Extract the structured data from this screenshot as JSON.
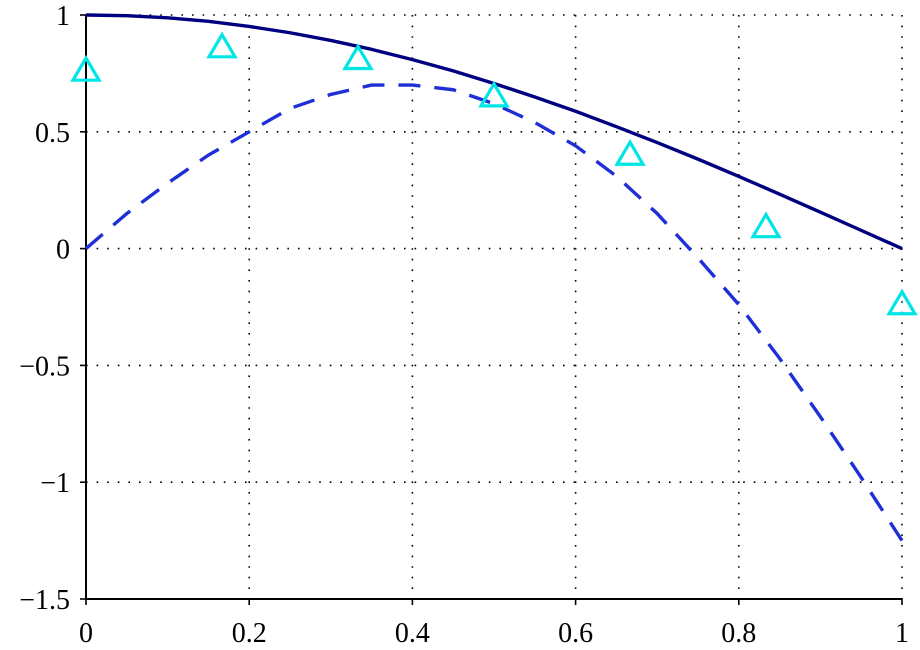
{
  "chart_data": {
    "type": "line",
    "title": "",
    "xlabel": "",
    "ylabel": "",
    "xlim": [
      0,
      1
    ],
    "ylim": [
      -1.5,
      1
    ],
    "grid": true,
    "x_ticks": [
      0,
      0.2,
      0.4,
      0.6,
      0.8,
      1
    ],
    "x_tick_labels": [
      "0",
      "0.2",
      "0.4",
      "0.6",
      "0.8",
      "1"
    ],
    "y_ticks": [
      -1.5,
      -1,
      -0.5,
      0,
      0.5,
      1
    ],
    "y_tick_labels": [
      "−1.5",
      "−1",
      "−0.5",
      "0",
      "0.5",
      "1"
    ],
    "series": [
      {
        "style": "solid",
        "color": "#000080",
        "x": [
          0,
          0.05,
          0.1,
          0.15,
          0.2,
          0.25,
          0.3,
          0.35,
          0.4,
          0.45,
          0.5,
          0.55,
          0.6,
          0.65,
          0.7,
          0.75,
          0.8,
          0.85,
          0.9,
          0.95,
          1
        ],
        "y": [
          1.0,
          0.997,
          0.988,
          0.973,
          0.951,
          0.924,
          0.891,
          0.853,
          0.809,
          0.761,
          0.707,
          0.649,
          0.588,
          0.522,
          0.454,
          0.383,
          0.309,
          0.233,
          0.156,
          0.078,
          0.0
        ]
      },
      {
        "style": "dashed",
        "color": "#1f2fd6",
        "x": [
          0,
          0.05,
          0.1,
          0.15,
          0.2,
          0.25,
          0.3,
          0.35,
          0.4,
          0.45,
          0.5,
          0.55,
          0.6,
          0.65,
          0.7,
          0.75,
          0.8,
          0.85,
          0.9,
          0.95,
          1
        ],
        "y": [
          0.0,
          0.15,
          0.28,
          0.4,
          0.5,
          0.6,
          0.66,
          0.7,
          0.7,
          0.68,
          0.62,
          0.54,
          0.44,
          0.31,
          0.15,
          -0.04,
          -0.24,
          -0.47,
          -0.72,
          -0.98,
          -1.25
        ]
      },
      {
        "style": "markers",
        "marker": "triangle",
        "color": "#00e5e5",
        "x": [
          0,
          0.1667,
          0.3333,
          0.5,
          0.6667,
          0.8333,
          1
        ],
        "y": [
          0.76,
          0.86,
          0.81,
          0.65,
          0.4,
          0.09,
          -0.24
        ]
      }
    ]
  }
}
